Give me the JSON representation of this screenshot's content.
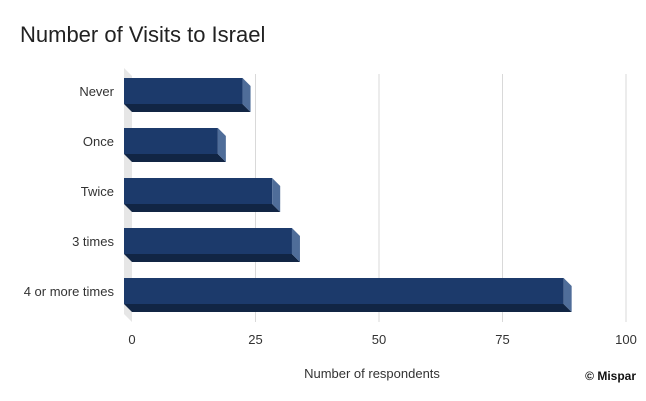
{
  "chart_data": {
    "type": "bar",
    "orientation": "horizontal",
    "style": "3d",
    "title": "Number of Visits to Israel",
    "xlabel": "Number of respondents",
    "ylabel": "",
    "categories": [
      "Never",
      "Once",
      "Twice",
      "3 times",
      "4 or more times"
    ],
    "values": [
      24,
      19,
      30,
      34,
      89
    ],
    "xlim": [
      0,
      100
    ],
    "xticks": [
      0,
      25,
      50,
      75,
      100
    ],
    "grid": true,
    "legend": "none"
  },
  "credit": "© Mispar",
  "colors": {
    "bar_front": "#1c3a6b",
    "bar_bottom": "#112544",
    "bar_side": "#4f6d99",
    "grid": "#d9d9d9",
    "floor": "#e6e6e6"
  }
}
